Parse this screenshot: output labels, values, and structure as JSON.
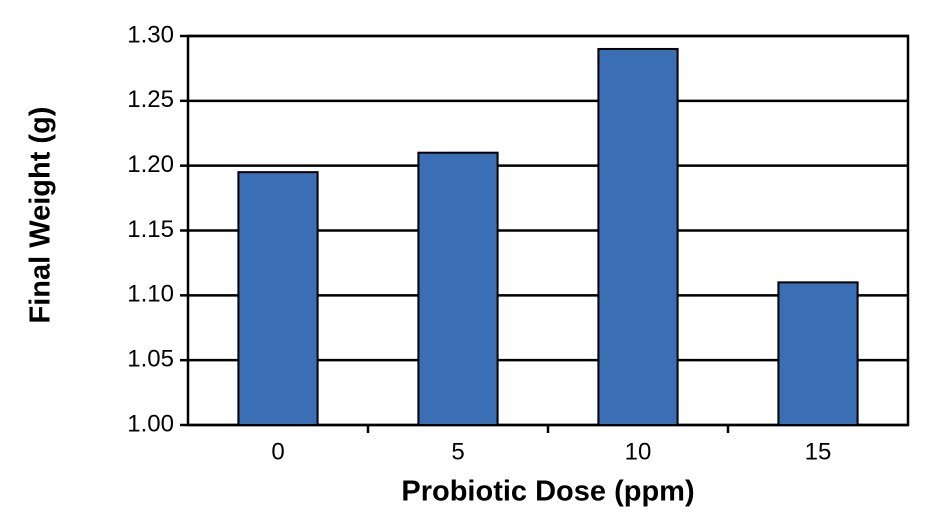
{
  "chart_data": {
    "type": "bar",
    "x_label": "Probiotic Dose (ppm)",
    "y_label": "Final Weight (g)",
    "categories": [
      "0",
      "5",
      "10",
      "15"
    ],
    "values": [
      1.195,
      1.21,
      1.29,
      1.11
    ],
    "color": "#3a6fb5",
    "ylim": [
      1.0,
      1.3
    ],
    "yticks": [
      {
        "value": 1.0,
        "label": "1.00"
      },
      1.05,
      {
        "value": 1.1,
        "label": "1.10"
      },
      1.15,
      {
        "value": 1.2,
        "label": "1.20"
      },
      1.25,
      {
        "value": 1.3,
        "label": "1.30"
      }
    ],
    "grid": true
  }
}
